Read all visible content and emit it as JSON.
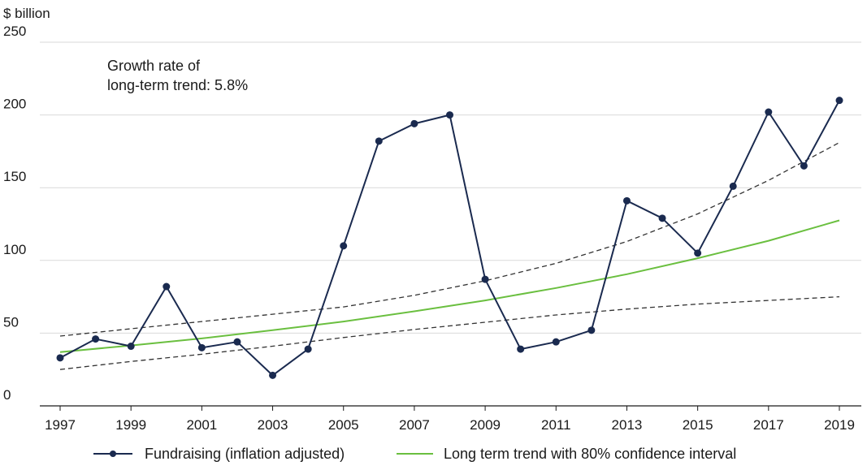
{
  "chart_data": {
    "type": "line",
    "ylabel": "$ billion",
    "ylim": [
      0,
      250
    ],
    "yticks": [
      0,
      50,
      100,
      150,
      200,
      250
    ],
    "xlim": [
      1997,
      2019
    ],
    "xticks": [
      1997,
      1999,
      2001,
      2003,
      2005,
      2007,
      2009,
      2011,
      2013,
      2015,
      2017,
      2019
    ],
    "grid": "horizontal",
    "annotation_lines": [
      "Growth rate of",
      "long-term trend: 5.8%"
    ],
    "legend_position": "bottom",
    "series": [
      {
        "name": "Fundraising (inflation adjusted)",
        "style": "line-markers",
        "color": "#1a2a4f",
        "x": [
          1997,
          1998,
          1999,
          2000,
          2001,
          2002,
          2003,
          2004,
          2005,
          2006,
          2007,
          2008,
          2009,
          2010,
          2011,
          2012,
          2013,
          2014,
          2015,
          2016,
          2017,
          2018,
          2019
        ],
        "values": [
          33,
          46,
          41,
          82,
          40,
          44,
          21,
          39,
          110,
          182,
          194,
          200,
          87,
          39,
          44,
          52,
          141,
          129,
          105,
          151,
          202,
          165,
          210
        ]
      },
      {
        "name": "Long term trend with 80% confidence interval",
        "style": "line",
        "color": "#6abf3f",
        "x": [
          1997,
          1999,
          2001,
          2003,
          2005,
          2007,
          2009,
          2011,
          2013,
          2015,
          2017,
          2019
        ],
        "values": [
          37,
          41.5,
          46.4,
          52,
          58,
          65,
          72.5,
          81,
          90.5,
          101.5,
          113.5,
          127.5
        ],
        "upper": [
          48,
          53,
          58,
          63,
          68,
          76,
          86,
          98,
          113,
          132,
          155,
          181
        ],
        "lower": [
          25,
          30.5,
          35.5,
          41,
          47,
          52.5,
          57.5,
          62.5,
          66.5,
          70,
          72.5,
          75
        ]
      }
    ]
  }
}
